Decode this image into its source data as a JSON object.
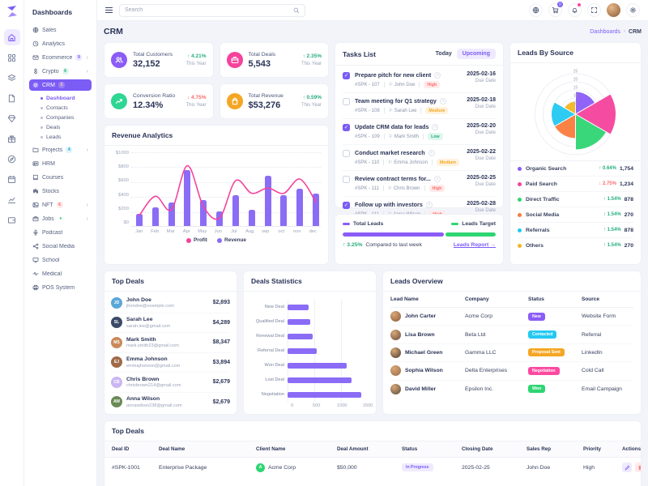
{
  "sidebar": {
    "title": "Dashboards",
    "items": [
      {
        "label": "Sales",
        "icon": "globe-icon"
      },
      {
        "label": "Analytics",
        "icon": "clock-icon"
      },
      {
        "label": "Ecommerce",
        "icon": "mail-icon",
        "badge": "9",
        "badge_bg": "#efeaff",
        "badge_fg": "#7b5cf5",
        "arrow": true
      },
      {
        "label": "Crypto",
        "icon": "crypto-icon",
        "badge": "6",
        "badge_bg": "#dff7ee",
        "badge_fg": "#27ae7f",
        "arrow": true
      },
      {
        "label": "CRM",
        "icon": "gear-icon",
        "badge": "5",
        "badge_bg": "rgba(255,255,255,0.2)",
        "badge_fg": "#ffc9a8",
        "active": true,
        "sub": [
          {
            "label": "Dashboard",
            "active": true
          },
          {
            "label": "Contacts"
          },
          {
            "label": "Companies"
          },
          {
            "label": "Deals"
          },
          {
            "label": "Leads"
          }
        ]
      },
      {
        "label": "Projects",
        "icon": "folder-icon",
        "badge": "4",
        "badge_bg": "#dff3fb",
        "badge_fg": "#23a8d8",
        "arrow": true
      },
      {
        "label": "HRM",
        "icon": "id-card-icon"
      },
      {
        "label": "Courses",
        "icon": "book-icon"
      },
      {
        "label": "Stocks",
        "icon": "stocks-icon"
      },
      {
        "label": "NFT",
        "icon": "image-icon",
        "badge": "6",
        "badge_bg": "#ffeaea",
        "badge_fg": "#fb6b6b",
        "arrow": true
      },
      {
        "label": "Jobs",
        "icon": "briefcase-icon",
        "badge": "●",
        "badge_bg": "transparent",
        "badge_fg": "#2fd573",
        "arrow": true
      },
      {
        "label": "Podcast",
        "icon": "mic-icon"
      },
      {
        "label": "Social Media",
        "icon": "share-icon"
      },
      {
        "label": "School",
        "icon": "monitor-icon"
      },
      {
        "label": "Medical",
        "icon": "pulse-icon"
      },
      {
        "label": "POS System",
        "icon": "printer-icon"
      }
    ]
  },
  "rail_icons": [
    "home-icon",
    "apps-grid-icon",
    "layers-icon",
    "file-icon",
    "gem-icon",
    "gift-icon",
    "compass-icon",
    "calendar-icon",
    "chart-icon",
    "wallet-icon"
  ],
  "header": {
    "search_placeholder": "Search",
    "cart_badge": "0",
    "icons": [
      "globe-icon",
      "cart-icon",
      "bell-icon",
      "expand-icon",
      "avatar",
      "settings-icon"
    ]
  },
  "page": {
    "title": "CRM",
    "breadcrumb_parent": "Dashboards",
    "breadcrumb_sep": "›",
    "breadcrumb_current": "CRM"
  },
  "stats": [
    {
      "label": "Total Customers",
      "value": "32,152",
      "delta": "4.21%",
      "dir": "up",
      "period": "This Year",
      "color": "#8b5cf6",
      "icon": "users-icon"
    },
    {
      "label": "Total Deals",
      "value": "5,543",
      "delta": "2.35%",
      "dir": "up",
      "period": "This Year",
      "color": "#f5439d",
      "icon": "briefcase-icon"
    },
    {
      "label": "Conversion Ratio",
      "value": "12.34%",
      "delta": "4.75%",
      "dir": "down",
      "period": "This Year",
      "color": "#2fd593",
      "icon": "trend-icon"
    },
    {
      "label": "Total Revenue",
      "value": "$53,276",
      "delta": "0.59%",
      "dir": "up",
      "period": "This Year",
      "color": "#f5a623",
      "icon": "bag-icon"
    }
  ],
  "tasks": {
    "title": "Tasks List",
    "tab_today": "Today",
    "tab_upcoming": "Upcoming",
    "due_label": "Due Date",
    "items": [
      {
        "done": true,
        "title": "Prepare pitch for new client",
        "id": "#SPK - 107",
        "assignee": "John Doe",
        "priority": "High",
        "date": "2025-02-16"
      },
      {
        "done": false,
        "title": "Team meeting for Q1 strategy",
        "id": "#SPK - 108",
        "assignee": "Sarah Lee",
        "priority": "Medium",
        "date": "2025-02-18"
      },
      {
        "done": true,
        "title": "Update CRM data for leads",
        "id": "#SPK - 109",
        "assignee": "Mark Smith",
        "priority": "Low",
        "date": "2025-02-20"
      },
      {
        "done": false,
        "title": "Conduct market research",
        "id": "#SPK - 110",
        "assignee": "Emma Johnson",
        "priority": "Medium",
        "date": "2025-02-22"
      },
      {
        "done": false,
        "title": "Review contract terms for...",
        "id": "#SPK - 111",
        "assignee": "Chris Brown",
        "priority": "High",
        "date": "2025-02-25"
      },
      {
        "done": true,
        "title": "Follow up with investors",
        "id": "#SPK - 111",
        "assignee": "Anna Wilson",
        "priority": "High",
        "date": "2025-02-28"
      }
    ]
  },
  "leads_progress": {
    "legend_left": "Total Leads",
    "legend_right": "Leads Target",
    "purple_pct": 66,
    "delta": "3.25%",
    "compare_text": "Compared to last week",
    "link_text": "Leads Report →"
  },
  "leads_by_source": {
    "title": "Leads By Source",
    "legend": [
      {
        "label": "Organic Search",
        "dot": "#8b5cf6",
        "delta": "0.64%",
        "dir": "up",
        "value": "1,754"
      },
      {
        "label": "Paid Search",
        "dot": "#f5439d",
        "delta": "2.75%",
        "dir": "down",
        "value": "1,234"
      },
      {
        "label": "Direct Traffic",
        "dot": "#2fd573",
        "delta": "1.54%",
        "dir": "up",
        "value": "878"
      },
      {
        "label": "Social Media",
        "dot": "#fb7c3c",
        "delta": "1.54%",
        "dir": "up",
        "value": "270"
      },
      {
        "label": "Referrals",
        "dot": "#23c9f2",
        "delta": "1.54%",
        "dir": "up",
        "value": "878"
      },
      {
        "label": "Others",
        "dot": "#f5b623",
        "delta": "1.54%",
        "dir": "up",
        "value": "270"
      }
    ]
  },
  "top_deals_list": {
    "title": "Top Deals",
    "rows": [
      {
        "name": "John Doe",
        "email": "jhondoe@example.com",
        "amount": "$2,893",
        "av": "#5aa7d8"
      },
      {
        "name": "Sarah Lee",
        "email": "sarah.lee@gmail.com",
        "amount": "$4,289",
        "av": "#3b4a66"
      },
      {
        "name": "Mark Smith",
        "email": "mark.smith23@gmail.com",
        "amount": "$8,347",
        "av": "#c98a5a"
      },
      {
        "name": "Emma Johnson",
        "email": "emmajhonson@gmail.com",
        "amount": "$3,894",
        "av": "#a06a48"
      },
      {
        "name": "Chris Brown",
        "email": "chrisbrown214@gmail.com",
        "amount": "$2,679",
        "av": "#c9b6f2"
      },
      {
        "name": "Anna Wilson",
        "email": "annawilson238@gmail.com",
        "amount": "$2,679",
        "av": "#6a8a56"
      }
    ]
  },
  "leads_overview": {
    "title": "Leads Overview",
    "columns": [
      "Lead Name",
      "Company",
      "Status",
      "Source"
    ],
    "rows": [
      {
        "name": "John Carter",
        "company": "Acme Corp",
        "status": "New",
        "status_color": "#8b5cf6",
        "source": "Website Form",
        "av": "#8a5a36"
      },
      {
        "name": "Lisa Brown",
        "company": "Beta Ltd",
        "status": "Contacted",
        "status_color": "#23c9f2",
        "source": "Referral",
        "av": "#6a4a3a"
      },
      {
        "name": "Michael Green",
        "company": "Gamma LLC",
        "status": "Proposal Sent",
        "status_color": "#f5a623",
        "source": "LinkedIn",
        "av": "#4a3a30"
      },
      {
        "name": "Sophia Wilson",
        "company": "Delta Enterprises",
        "status": "Negotiation",
        "status_color": "#fd49a0",
        "source": "Cold Call",
        "av": "#9a6a4a"
      },
      {
        "name": "David Miller",
        "company": "Epsilon Inc.",
        "status": "Won",
        "status_color": "#2fd573",
        "source": "Email Campaign",
        "av": "#5a4a3a"
      }
    ]
  },
  "deals_statistics_title": "Deals Statistics",
  "revenue_title": "Revenue Analytics",
  "top_deals_table": {
    "title": "Top Deals",
    "columns": [
      "Deal ID",
      "Deal Name",
      "Client Name",
      "Deal Amount",
      "Status",
      "Closing Date",
      "Sales Rep",
      "Priority",
      "Actions"
    ],
    "rows": [
      {
        "id": "#SPK-1001",
        "deal": "Enterprise Package",
        "client": "Acme Corp",
        "amount": "$50,000",
        "status": "In Progress",
        "closing": "2025-02-25",
        "rep": "John Doe",
        "priority": "High"
      }
    ]
  },
  "chart_data": [
    {
      "name": "revenue_analytics",
      "type": "bar",
      "title": "Revenue Analytics",
      "categories": [
        "Jan",
        "Feb",
        "Mar",
        "Apr",
        "May",
        "Jun",
        "Jul",
        "Aug",
        "sep",
        "oct",
        "nov",
        "dec"
      ],
      "series": [
        {
          "name": "Profit",
          "type": "line",
          "color": "#f5439d",
          "values": [
            150,
            410,
            230,
            820,
            270,
            120,
            620,
            450,
            520,
            450,
            640,
            330
          ]
        },
        {
          "name": "Revenue",
          "type": "bar",
          "color": "#8b6cf6",
          "values": [
            160,
            250,
            320,
            750,
            350,
            195,
            410,
            220,
            670,
            410,
            500,
            440
          ]
        }
      ],
      "ylim": [
        0,
        1000
      ],
      "yticks": [
        "$1000",
        "$800",
        "$600",
        "$400",
        "$200",
        "$0"
      ],
      "legend_position": "bottom",
      "grid": true
    },
    {
      "name": "leads_by_source",
      "type": "pie",
      "subtype": "polar-area",
      "title": "Leads By Source",
      "categories": [
        "Organic Search",
        "Paid Search",
        "Direct Traffic",
        "Social Media",
        "Referrals",
        "Others"
      ],
      "values": [
        14,
        25,
        22,
        15,
        15,
        8
      ],
      "counts": [
        1754,
        1234,
        878,
        270,
        878,
        270
      ],
      "colors": [
        "#8b5cf6",
        "#f5439d",
        "#2fd573",
        "#fb7c3c",
        "#23c9f2",
        "#f5b623"
      ],
      "rticks": [
        5,
        10,
        15,
        20,
        25
      ],
      "rlim": [
        0,
        25
      ]
    },
    {
      "name": "deals_statistics",
      "type": "bar",
      "subtype": "horizontal",
      "title": "Deals Statistics",
      "categories": [
        "New Deal",
        "Qualified Deal",
        "Renewal Deal",
        "Referral Deal",
        "Won Deal",
        "Lost Deal",
        "Negotiation"
      ],
      "values": [
        400,
        430,
        470,
        550,
        1100,
        1200,
        1380
      ],
      "xticks": [
        0,
        500,
        1000,
        1500
      ],
      "xlim": [
        0,
        1500
      ],
      "color": "#8b6cf6",
      "grid": true
    }
  ]
}
